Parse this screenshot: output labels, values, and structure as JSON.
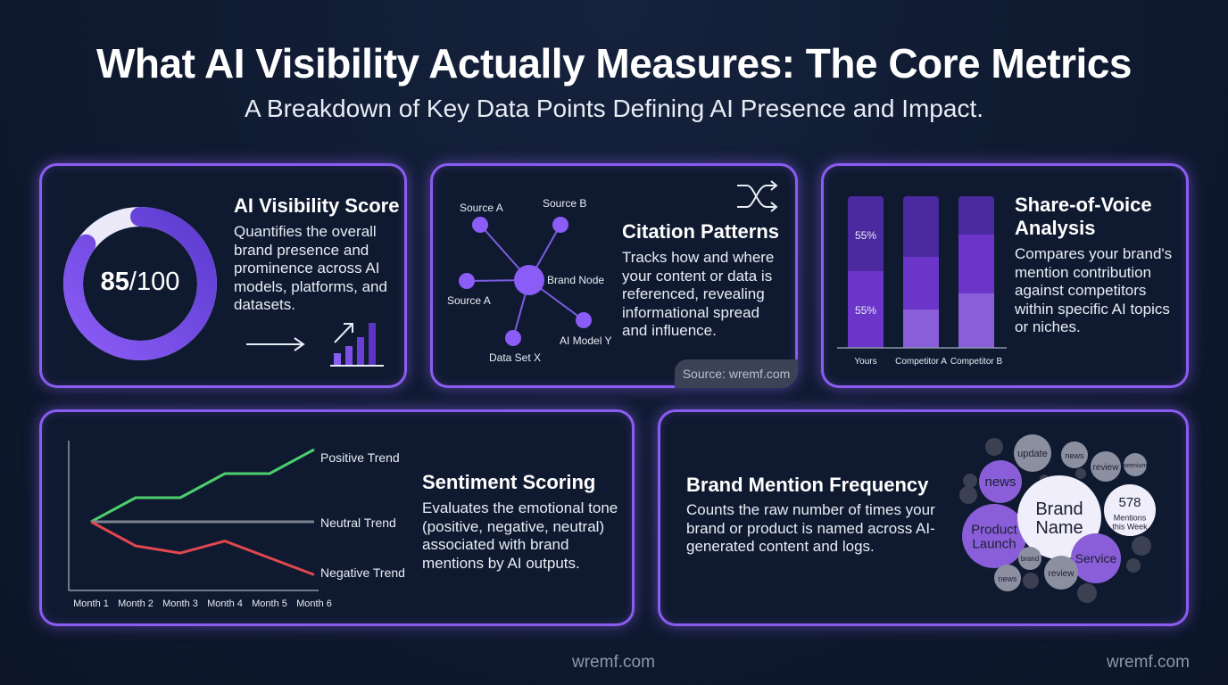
{
  "header": {
    "title": "What AI Visibility Actually Measures: The Core Metrics",
    "subtitle": "A Breakdown of Key Data Points Defining AI Presence and Impact."
  },
  "score_card": {
    "title": "AI Visibility Score",
    "description": "Quantifies the overall brand presence and prominence across AI models, platforms, and datasets.",
    "score_value": "85",
    "score_max": "/100",
    "progress": 0.85
  },
  "citation_card": {
    "title": "Citation Patterns",
    "description": "Tracks how and where your content or data is referenced, revealing informational spread and influence.",
    "center_label": "Brand Node",
    "nodes": [
      "Source A",
      "Source B",
      "Source A",
      "AI Model Y",
      "Data Set X"
    ],
    "source_label": "Source: wremf.com"
  },
  "sov_card": {
    "title": "Share-of-Voice Analysis",
    "description": "Compares your brand's mention contribution against competitors within specific AI topics or niches.",
    "chart_data": {
      "type": "bar",
      "categories": [
        "Yours",
        "Competitor A",
        "Competitor B"
      ],
      "data_labels": [
        "55%",
        "55%"
      ]
    }
  },
  "sentiment_card": {
    "title": "Sentiment Scoring",
    "description": "Evaluates the emotional tone (positive, negative, neutral) associated with brand mentions by AI outputs.",
    "chart_data": {
      "type": "line",
      "categories": [
        "Month 1",
        "Month 2",
        "Month 3",
        "Month 4",
        "Month 5",
        "Month 6"
      ],
      "series": [
        {
          "name": "Positive Trend",
          "values": [
            0,
            1,
            1,
            2,
            2,
            3
          ],
          "color": "#4ccf6b"
        },
        {
          "name": "Neutral Trend",
          "values": [
            0,
            0,
            0,
            0,
            0,
            0
          ],
          "color": "#7d8391"
        },
        {
          "name": "Negative Trend",
          "values": [
            0,
            -1,
            -1.3,
            -0.8,
            -1.5,
            -2.2
          ],
          "color": "#e0474f"
        }
      ]
    }
  },
  "mentions_card": {
    "title": "Brand Mention Frequency",
    "description": "Counts the raw number of times your brand or product is named across AI-generated content and logs.",
    "bubbles": {
      "brand_name": "Brand\nName",
      "count_value": "578",
      "count_label": "Mentions\nthis Week",
      "product_launch": "Product\nLaunch",
      "service": "Service",
      "news": "news",
      "update": "update",
      "news_small": "news",
      "review_top": "review",
      "seenium": "seenium",
      "brand_small": "brand",
      "review_bottom": "review",
      "news_bottom": "news"
    }
  },
  "footer": {
    "watermark_center": "wremf.com",
    "watermark_right": "wremf.com"
  },
  "colors": {
    "accent": "#8a5cf0",
    "background": "#0f1a30",
    "positive": "#4ccf6b",
    "neutral": "#7d8391",
    "negative": "#e0474f"
  }
}
